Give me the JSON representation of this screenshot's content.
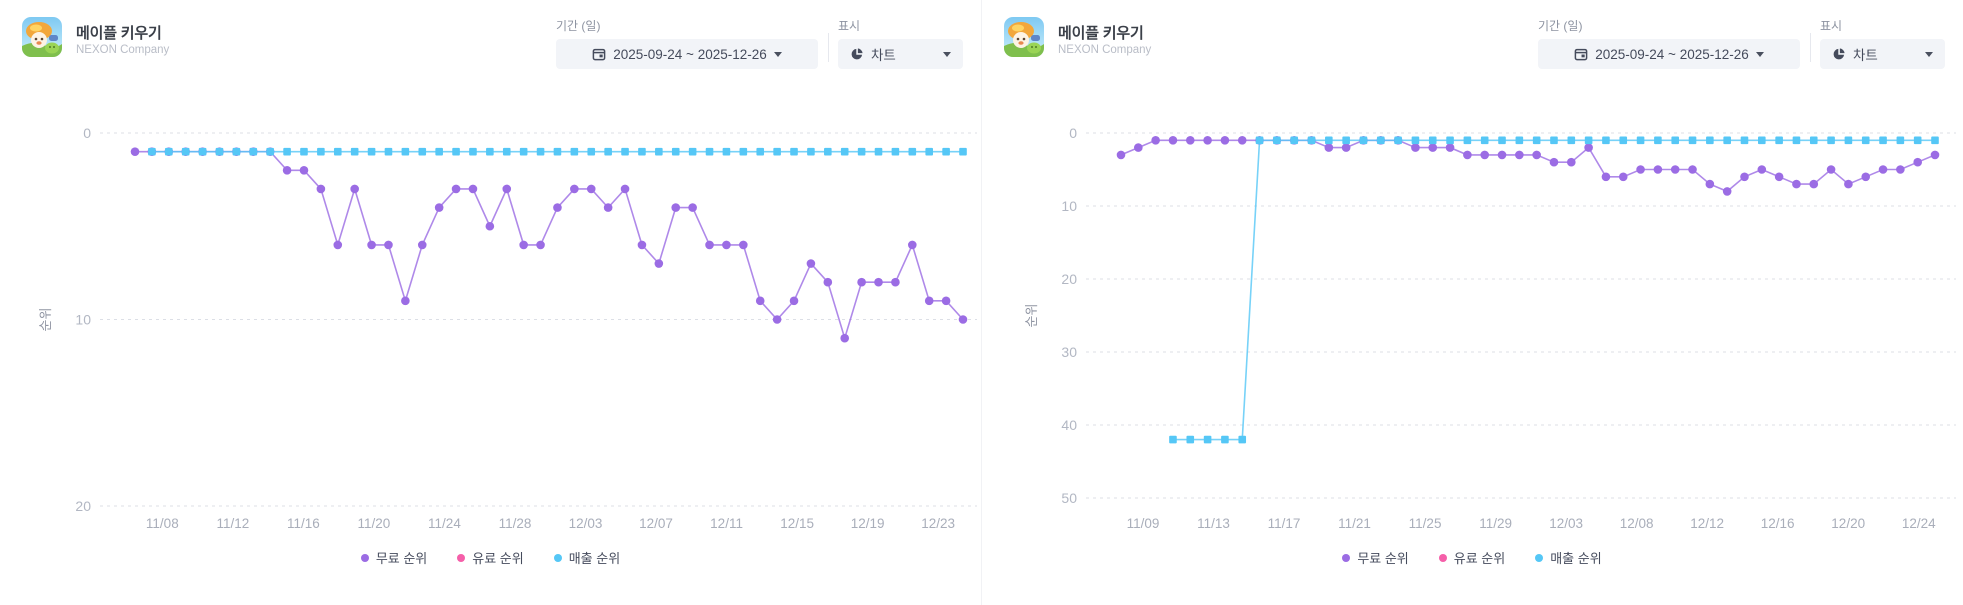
{
  "panels": [
    {
      "app": {
        "title": "메이플 키우기",
        "company": "NEXON Company"
      },
      "controls": {
        "period_label": "기간 (일)",
        "period_value": "2025-09-24  ~  2025-12-26",
        "display_label": "표시",
        "display_value": "차트"
      },
      "chart_data": {
        "type": "line",
        "y_axis_title": "순위",
        "y_inverted": true,
        "y_ticks": [
          0,
          10,
          20
        ],
        "ylim": [
          0,
          20
        ],
        "grid": "dashed-horizontal",
        "legend_position": "bottom-center",
        "x_tick_labels": [
          "11/08",
          "11/12",
          "11/16",
          "11/20",
          "11/24",
          "11/28",
          "12/03",
          "12/07",
          "12/11",
          "12/15",
          "12/19",
          "12/23"
        ],
        "x_tick_span": [
          0.033,
          0.97
        ],
        "legend": [
          {
            "label": "무료 순위",
            "color": "#9b6ce4"
          },
          {
            "label": "유료 순위",
            "color": "#f55fa9"
          },
          {
            "label": "매출 순위",
            "color": "#55c7f6"
          }
        ],
        "series": [
          {
            "name": "무료 순위",
            "color": "#9b6ce4",
            "marker": "circle",
            "values": [
              1,
              1,
              1,
              1,
              1,
              1,
              1,
              1,
              1,
              2,
              2,
              3,
              6,
              3,
              6,
              6,
              9,
              6,
              4,
              3,
              3,
              5,
              3,
              6,
              6,
              4,
              3,
              3,
              4,
              3,
              6,
              7,
              4,
              4,
              6,
              6,
              6,
              9,
              10,
              9,
              7,
              8,
              11,
              8,
              8,
              8,
              6,
              9,
              9,
              10
            ]
          },
          {
            "name": "유료 순위",
            "color": "#f55fa9",
            "marker": "circle",
            "values": []
          },
          {
            "name": "매출 순위",
            "color": "#55c7f6",
            "marker": "square",
            "values": [
              null,
              1,
              1,
              1,
              1,
              1,
              1,
              1,
              1,
              1,
              1,
              1,
              1,
              1,
              1,
              1,
              1,
              1,
              1,
              1,
              1,
              1,
              1,
              1,
              1,
              1,
              1,
              1,
              1,
              1,
              1,
              1,
              1,
              1,
              1,
              1,
              1,
              1,
              1,
              1,
              1,
              1,
              1,
              1,
              1,
              1,
              1,
              1,
              1,
              1
            ]
          }
        ]
      }
    },
    {
      "app": {
        "title": "메이플 키우기",
        "company": "NEXON Company"
      },
      "controls": {
        "period_label": "기간 (일)",
        "period_value": "2025-09-24  ~  2025-12-26",
        "display_label": "표시",
        "display_value": "차트"
      },
      "chart_data": {
        "type": "line",
        "y_axis_title": "순위",
        "y_inverted": true,
        "y_ticks": [
          0,
          10,
          20,
          30,
          40,
          50
        ],
        "ylim": [
          0,
          50
        ],
        "grid": "dashed-horizontal",
        "legend_position": "bottom-center",
        "x_tick_labels": [
          "11/09",
          "11/13",
          "11/17",
          "11/21",
          "11/25",
          "11/29",
          "12/03",
          "12/08",
          "12/12",
          "12/16",
          "12/20",
          "12/24"
        ],
        "x_tick_span": [
          0.027,
          0.98
        ],
        "legend": [
          {
            "label": "무료 순위",
            "color": "#9b6ce4"
          },
          {
            "label": "유료 순위",
            "color": "#f55fa9"
          },
          {
            "label": "매출 순위",
            "color": "#55c7f6"
          }
        ],
        "series": [
          {
            "name": "무료 순위",
            "color": "#9b6ce4",
            "marker": "circle",
            "values": [
              3,
              2,
              1,
              1,
              1,
              1,
              1,
              1,
              1,
              1,
              1,
              1,
              2,
              2,
              1,
              1,
              1,
              2,
              2,
              2,
              3,
              3,
              3,
              3,
              3,
              4,
              4,
              2,
              6,
              6,
              5,
              5,
              5,
              5,
              7,
              8,
              6,
              5,
              6,
              7,
              7,
              5,
              7,
              6,
              5,
              5,
              4,
              3
            ]
          },
          {
            "name": "유료 순위",
            "color": "#f55fa9",
            "marker": "circle",
            "values": []
          },
          {
            "name": "매출 순위",
            "color": "#55c7f6",
            "marker": "square",
            "values": [
              null,
              null,
              null,
              42,
              42,
              42,
              42,
              42,
              1,
              1,
              1,
              1,
              1,
              1,
              1,
              1,
              1,
              1,
              1,
              1,
              1,
              1,
              1,
              1,
              1,
              1,
              1,
              1,
              1,
              1,
              1,
              1,
              1,
              1,
              1,
              1,
              1,
              1,
              1,
              1,
              1,
              1,
              1,
              1,
              1,
              1,
              1,
              1
            ]
          }
        ]
      }
    }
  ]
}
